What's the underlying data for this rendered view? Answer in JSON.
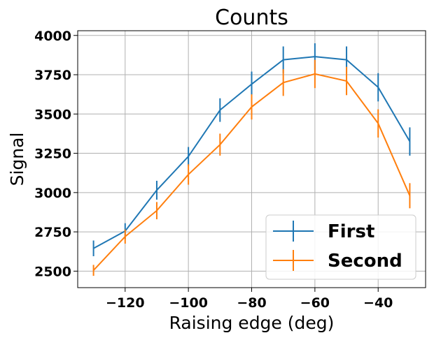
{
  "chart_data": {
    "type": "line",
    "title": "Counts",
    "xlabel": "Raising edge (deg)",
    "ylabel": "Signal",
    "xlim": [
      -135,
      -25
    ],
    "ylim": [
      2395,
      4030
    ],
    "xticks": [
      -120,
      -100,
      -80,
      -60,
      -40
    ],
    "xtick_labels": [
      "−120",
      "−100",
      "−80",
      "−60",
      "−40"
    ],
    "yticks": [
      2500,
      2750,
      3000,
      3250,
      3500,
      3750,
      4000
    ],
    "ytick_labels": [
      "2500",
      "2750",
      "3000",
      "3250",
      "3500",
      "3750",
      "4000"
    ],
    "grid": true,
    "legend_position": "lower-right",
    "x": [
      -130,
      -120,
      -110,
      -100,
      -90,
      -80,
      -70,
      -60,
      -50,
      -40,
      -30
    ],
    "series": [
      {
        "name": "First",
        "color": "#1f77b4",
        "values": [
          2645,
          2755,
          3015,
          3230,
          3525,
          3690,
          3845,
          3865,
          3845,
          3670,
          3325
        ],
        "errors": [
          50,
          50,
          60,
          60,
          75,
          80,
          85,
          85,
          85,
          90,
          90
        ]
      },
      {
        "name": "Second",
        "color": "#ff7f0e",
        "values": [
          2505,
          2720,
          2885,
          3115,
          3305,
          3545,
          3700,
          3755,
          3710,
          3440,
          2980
        ],
        "errors": [
          35,
          45,
          55,
          65,
          70,
          80,
          85,
          90,
          90,
          90,
          80
        ]
      }
    ]
  }
}
